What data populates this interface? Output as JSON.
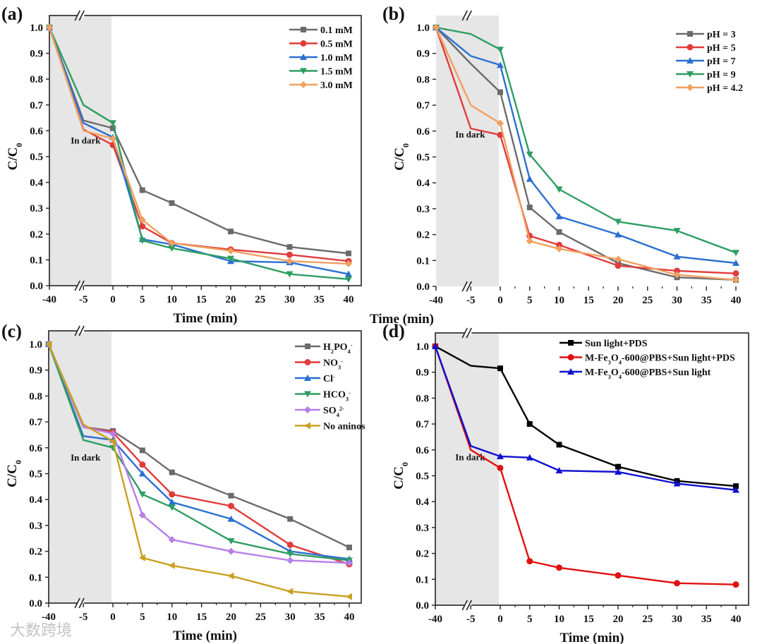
{
  "chart_data": [
    {
      "type": "line",
      "panel_label": "(a)",
      "xlabel": "Time (min)",
      "ylabel": {
        "main": "C/C",
        "sub": "0"
      },
      "annotation": "In dark",
      "x": [
        -40,
        -5,
        0,
        5,
        10,
        20,
        30,
        40
      ],
      "xticks": [
        "-40",
        "-5",
        "0",
        "5",
        "10",
        "15",
        "20",
        "25",
        "30",
        "35",
        "40"
      ],
      "yticks": [
        "0.0",
        "0.1",
        "0.2",
        "0.3",
        "0.4",
        "0.5",
        "0.6",
        "0.7",
        "0.8",
        "0.9",
        "1.0"
      ],
      "ylim": [
        0,
        1.0
      ],
      "legend_position": "top-right",
      "series": [
        {
          "name": [
            {
              "t": "0.1 mM"
            }
          ],
          "color": "#6b6b6b",
          "marker": "square",
          "values": [
            1.0,
            0.64,
            0.61,
            0.37,
            0.32,
            0.21,
            0.15,
            0.125
          ]
        },
        {
          "name": [
            {
              "t": "0.5 mM"
            }
          ],
          "color": "#e03c3c",
          "marker": "circle",
          "values": [
            1.0,
            0.605,
            0.545,
            0.23,
            0.165,
            0.14,
            0.12,
            0.095
          ]
        },
        {
          "name": [
            {
              "t": "1.0 mM"
            }
          ],
          "color": "#2a6fd1",
          "marker": "triangle-up",
          "values": [
            1.0,
            0.63,
            0.575,
            0.18,
            0.16,
            0.095,
            0.09,
            0.045
          ]
        },
        {
          "name": [
            {
              "t": "1.5 mM"
            }
          ],
          "color": "#2e9e62",
          "marker": "triangle-down",
          "values": [
            1.0,
            0.7,
            0.63,
            0.175,
            0.145,
            0.105,
            0.045,
            0.025
          ]
        },
        {
          "name": [
            {
              "t": "3.0 mM"
            }
          ],
          "color": "#f0a060",
          "marker": "diamond",
          "values": [
            1.0,
            0.6,
            0.57,
            0.255,
            0.165,
            0.135,
            0.095,
            0.085
          ]
        }
      ]
    },
    {
      "type": "line",
      "panel_label": "(b)",
      "xlabel": "Time (min)",
      "ylabel": {
        "main": "C/C",
        "sub": "0"
      },
      "annotation": "In dark",
      "x": [
        -40,
        -5,
        0,
        5,
        10,
        20,
        30,
        40
      ],
      "xticks": [
        "-40",
        "-5",
        "0",
        "5",
        "10",
        "15",
        "20",
        "25",
        "30",
        "35",
        "40"
      ],
      "yticks": [
        "0.0",
        "0.1",
        "0.2",
        "0.3",
        "0.4",
        "0.5",
        "0.6",
        "0.7",
        "0.8",
        "0.9",
        "1.0"
      ],
      "ylim": [
        0,
        1.0
      ],
      "legend_position": "top-right",
      "series": [
        {
          "name": [
            {
              "t": "pH = 3"
            }
          ],
          "color": "#6b6b6b",
          "marker": "square",
          "values": [
            1.0,
            0.86,
            0.75,
            0.305,
            0.21,
            0.09,
            0.035,
            0.025
          ]
        },
        {
          "name": [
            {
              "t": "pH = 5"
            }
          ],
          "color": "#e03c3c",
          "marker": "circle",
          "values": [
            1.0,
            0.61,
            0.585,
            0.195,
            0.16,
            0.08,
            0.06,
            0.05
          ]
        },
        {
          "name": [
            {
              "t": "pH = 7"
            }
          ],
          "color": "#2a6fd1",
          "marker": "triangle-up",
          "values": [
            1.0,
            0.89,
            0.855,
            0.415,
            0.27,
            0.2,
            0.115,
            0.09
          ]
        },
        {
          "name": [
            {
              "t": "pH = 9"
            }
          ],
          "color": "#2e9e62",
          "marker": "triangle-down",
          "values": [
            1.0,
            0.975,
            0.915,
            0.51,
            0.375,
            0.25,
            0.215,
            0.13
          ]
        },
        {
          "name": [
            {
              "t": "pH = 4.2"
            }
          ],
          "color": "#f0a060",
          "marker": "diamond",
          "values": [
            1.0,
            0.7,
            0.63,
            0.175,
            0.145,
            0.105,
            0.045,
            0.025
          ]
        }
      ]
    },
    {
      "type": "line",
      "panel_label": "(c)",
      "xlabel": "Time (min)",
      "ylabel": {
        "main": "C/C",
        "sub": "0"
      },
      "annotation": "In dark",
      "x": [
        -40,
        -5,
        0,
        5,
        10,
        20,
        30,
        40
      ],
      "xticks": [
        "-40",
        "-5",
        "0",
        "5",
        "10",
        "15",
        "20",
        "25",
        "30",
        "35",
        "40"
      ],
      "yticks": [
        "0.0",
        "0.1",
        "0.2",
        "0.3",
        "0.4",
        "0.5",
        "0.6",
        "0.7",
        "0.8",
        "0.9",
        "1.0"
      ],
      "ylim": [
        0,
        1.0
      ],
      "legend_position": "top-right",
      "series": [
        {
          "name": [
            {
              "t": "H"
            },
            {
              "t": "2",
              "s": "sub"
            },
            {
              "t": "PO"
            },
            {
              "t": "4",
              "s": "sub"
            },
            {
              "t": "-",
              "s": "sup"
            }
          ],
          "color": "#6b6b6b",
          "marker": "square",
          "values": [
            1.0,
            0.68,
            0.665,
            0.59,
            0.505,
            0.415,
            0.325,
            0.215
          ]
        },
        {
          "name": [
            {
              "t": "NO"
            },
            {
              "t": "3",
              "s": "sub"
            },
            {
              "t": "-",
              "s": "sup"
            }
          ],
          "color": "#e03c3c",
          "marker": "circle",
          "values": [
            1.0,
            0.68,
            0.66,
            0.535,
            0.42,
            0.375,
            0.225,
            0.15
          ]
        },
        {
          "name": [
            {
              "t": "Cl"
            },
            {
              "t": "-",
              "s": "sup"
            }
          ],
          "color": "#2a6fd1",
          "marker": "triangle-up",
          "values": [
            1.0,
            0.645,
            0.63,
            0.5,
            0.39,
            0.325,
            0.2,
            0.17
          ]
        },
        {
          "name": [
            {
              "t": "HCO"
            },
            {
              "t": "3",
              "s": "sub"
            },
            {
              "t": "-",
              "s": "sup"
            }
          ],
          "color": "#2e9e62",
          "marker": "triangle-down",
          "values": [
            1.0,
            0.63,
            0.6,
            0.42,
            0.37,
            0.24,
            0.19,
            0.165
          ]
        },
        {
          "name": [
            {
              "t": "SO"
            },
            {
              "t": "4",
              "s": "sub"
            },
            {
              "t": "2-",
              "s": "sup"
            }
          ],
          "color": "#b77ee8",
          "marker": "diamond",
          "values": [
            1.0,
            0.68,
            0.655,
            0.34,
            0.245,
            0.2,
            0.165,
            0.155
          ]
        },
        {
          "name": [
            {
              "t": "No aninos"
            }
          ],
          "color": "#c9a020",
          "marker": "triangle-left",
          "values": [
            1.0,
            0.69,
            0.625,
            0.175,
            0.145,
            0.105,
            0.045,
            0.025
          ]
        }
      ]
    },
    {
      "type": "line",
      "panel_label": "(d)",
      "xlabel": "Time (min)",
      "ylabel": {
        "main": "C/C",
        "sub": "0"
      },
      "annotation": "In dark",
      "x": [
        -40,
        -5,
        0,
        5,
        10,
        20,
        30,
        40
      ],
      "xticks": [
        "-40",
        "-5",
        "0",
        "5",
        "10",
        "15",
        "20",
        "25",
        "30",
        "35",
        "40"
      ],
      "yticks": [
        "0.0",
        "0.1",
        "0.2",
        "0.3",
        "0.4",
        "0.5",
        "0.6",
        "0.7",
        "0.8",
        "0.9",
        "1.0"
      ],
      "ylim": [
        0,
        1.0
      ],
      "legend_position": "top-center",
      "series": [
        {
          "name": [
            {
              "t": "Sun light+PDS"
            }
          ],
          "color": "#000000",
          "marker": "square",
          "values": [
            1.0,
            0.925,
            0.915,
            0.7,
            0.62,
            0.535,
            0.48,
            0.46
          ]
        },
        {
          "name": [
            {
              "t": "M-Fe"
            },
            {
              "t": "3",
              "s": "sub"
            },
            {
              "t": "O"
            },
            {
              "t": "4",
              "s": "sub"
            },
            {
              "t": "-600@PBS+Sun light+PDS"
            }
          ],
          "color": "#e01010",
          "marker": "circle",
          "values": [
            1.0,
            0.6,
            0.53,
            0.17,
            0.145,
            0.115,
            0.085,
            0.08
          ]
        },
        {
          "name": [
            {
              "t": "M-Fe"
            },
            {
              "t": "3",
              "s": "sub"
            },
            {
              "t": "O"
            },
            {
              "t": "4",
              "s": "sub"
            },
            {
              "t": "-600@PBS+Sun light"
            }
          ],
          "color": "#1010d0",
          "marker": "triangle-up",
          "values": [
            1.0,
            0.615,
            0.575,
            0.57,
            0.52,
            0.515,
            0.47,
            0.445
          ]
        }
      ]
    }
  ],
  "watermark": "大数跨境"
}
